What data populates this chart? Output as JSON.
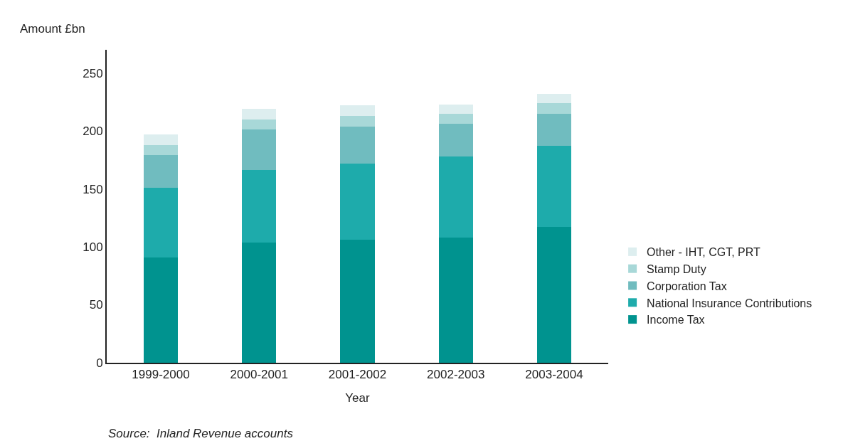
{
  "chart_data": {
    "type": "bar",
    "stacked": true,
    "xlabel": "Year",
    "ylabel": "Amount £bn",
    "categories": [
      "1999-2000",
      "2000-2001",
      "2001-2002",
      "2002-2003",
      "2003-2004"
    ],
    "series": [
      {
        "name": "Income Tax",
        "color": "#00938f",
        "values": [
          91,
          104,
          106,
          108,
          117
        ]
      },
      {
        "name": "National Insurance Contributions",
        "color": "#1eabab",
        "values": [
          60,
          62,
          66,
          70,
          70
        ]
      },
      {
        "name": "Corporation Tax",
        "color": "#70bcbf",
        "values": [
          28,
          35,
          32,
          28,
          28
        ]
      },
      {
        "name": "Stamp Duty",
        "color": "#a8d8d8",
        "values": [
          9,
          9,
          9,
          9,
          9
        ]
      },
      {
        "name": "Other - IHT, CGT, PRT",
        "color": "#ddeeef",
        "values": [
          9,
          9,
          9,
          8,
          8
        ]
      }
    ],
    "ylim": [
      0,
      270
    ],
    "yticks": [
      0,
      50,
      100,
      150,
      200,
      250
    ],
    "legend": "right",
    "annotations": [
      "Source:  Inland Revenue accounts"
    ]
  }
}
